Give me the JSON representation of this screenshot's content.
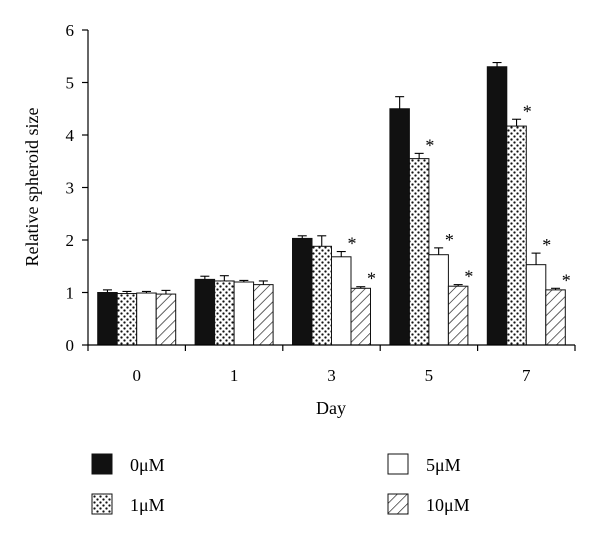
{
  "chart_data": {
    "type": "bar",
    "xlabel": "Day",
    "ylabel": "Relative spheroid size",
    "ylim": [
      0,
      6
    ],
    "yticks": [
      "0",
      "1",
      "2",
      "3",
      "4",
      "5",
      "6"
    ],
    "categories": [
      "0",
      "1",
      "3",
      "5",
      "7"
    ],
    "grid": false,
    "legend_position": "bottom",
    "significance_marker": "*",
    "series": [
      {
        "name": "0μM",
        "fill": "solid",
        "color": "#111111",
        "values": [
          1.0,
          1.25,
          2.03,
          4.5,
          5.3
        ],
        "errors": [
          0.05,
          0.06,
          0.05,
          0.23,
          0.08
        ],
        "significant": [
          false,
          false,
          false,
          false,
          false
        ]
      },
      {
        "name": "1μM",
        "fill": "dots",
        "color": "#111111",
        "values": [
          0.98,
          1.22,
          1.88,
          3.55,
          4.17
        ],
        "errors": [
          0.04,
          0.1,
          0.2,
          0.1,
          0.13
        ],
        "significant": [
          false,
          false,
          false,
          true,
          true
        ]
      },
      {
        "name": "5μM",
        "fill": "white",
        "color": "#ffffff",
        "values": [
          0.99,
          1.2,
          1.68,
          1.72,
          1.53
        ],
        "errors": [
          0.03,
          0.03,
          0.1,
          0.13,
          0.22
        ],
        "significant": [
          false,
          false,
          true,
          true,
          true
        ]
      },
      {
        "name": "10μM",
        "fill": "hatch",
        "color": "#111111",
        "values": [
          0.97,
          1.15,
          1.08,
          1.12,
          1.05
        ],
        "errors": [
          0.07,
          0.07,
          0.03,
          0.03,
          0.03
        ],
        "significant": [
          false,
          false,
          true,
          true,
          true
        ]
      }
    ]
  }
}
